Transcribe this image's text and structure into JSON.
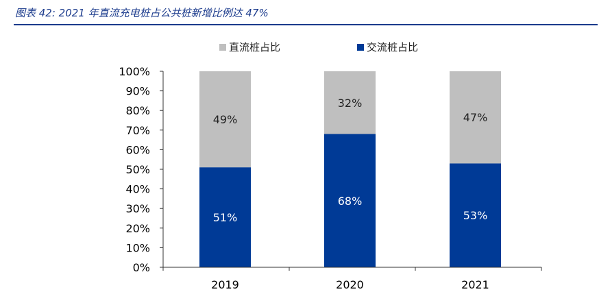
{
  "caption": "图表 42: 2021 年直流充电桩占公共桩新增比例达 47%",
  "chart_data": {
    "type": "bar",
    "stacked": true,
    "percent_stacked": true,
    "categories": [
      "2019",
      "2020",
      "2021"
    ],
    "series": [
      {
        "name": "交流桩占比",
        "values": [
          51,
          68,
          53
        ],
        "labels": [
          "51%",
          "68%",
          "53%"
        ],
        "color": "#003a96",
        "label_color": "#ffffff"
      },
      {
        "name": "直流桩占比",
        "values": [
          49,
          32,
          47
        ],
        "labels": [
          "49%",
          "32%",
          "47%"
        ],
        "color": "#bfbfbf",
        "label_color": "#222222"
      }
    ],
    "legend_order": [
      1,
      0
    ],
    "legend_position": "top",
    "y_ticks": [
      "0%",
      "10%",
      "20%",
      "30%",
      "40%",
      "50%",
      "60%",
      "70%",
      "80%",
      "90%",
      "100%"
    ],
    "ylim": [
      0,
      100
    ],
    "grid": false
  }
}
